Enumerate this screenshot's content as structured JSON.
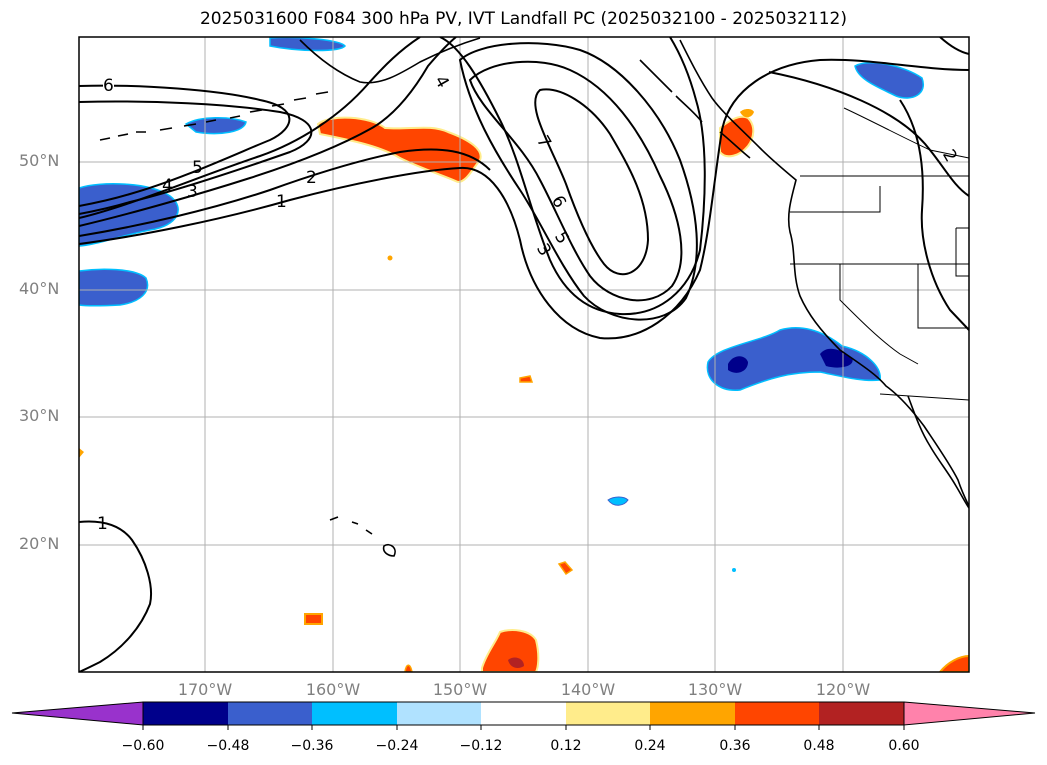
{
  "title": "2025031600 F084 300 hPa PV, IVT Landfall PC (2025032100 - 2025032112)",
  "map": {
    "lat_labels": [
      "50°N",
      "40°N",
      "30°N",
      "20°N"
    ],
    "lon_labels": [
      "170°W",
      "160°W",
      "150°W",
      "140°W",
      "130°W",
      "120°W"
    ],
    "contour_labels": [
      "6",
      "4",
      "5",
      "4",
      "3",
      "2",
      "1",
      "7",
      "6",
      "5",
      "3",
      "2",
      "1"
    ],
    "gridline_color": "#b0b0b0"
  },
  "colorbar": {
    "ticks": [
      "−0.60",
      "−0.48",
      "−0.36",
      "−0.24",
      "−0.12",
      "0.12",
      "0.24",
      "0.36",
      "0.48",
      "0.60"
    ],
    "colors": [
      "#9932cc",
      "#00008b",
      "#3a5fcd",
      "#00bfff",
      "#b0e2ff",
      "#ffffff",
      "#ffec8b",
      "#ffa500",
      "#ff4500",
      "#b22222",
      "#ff82ab"
    ]
  }
}
